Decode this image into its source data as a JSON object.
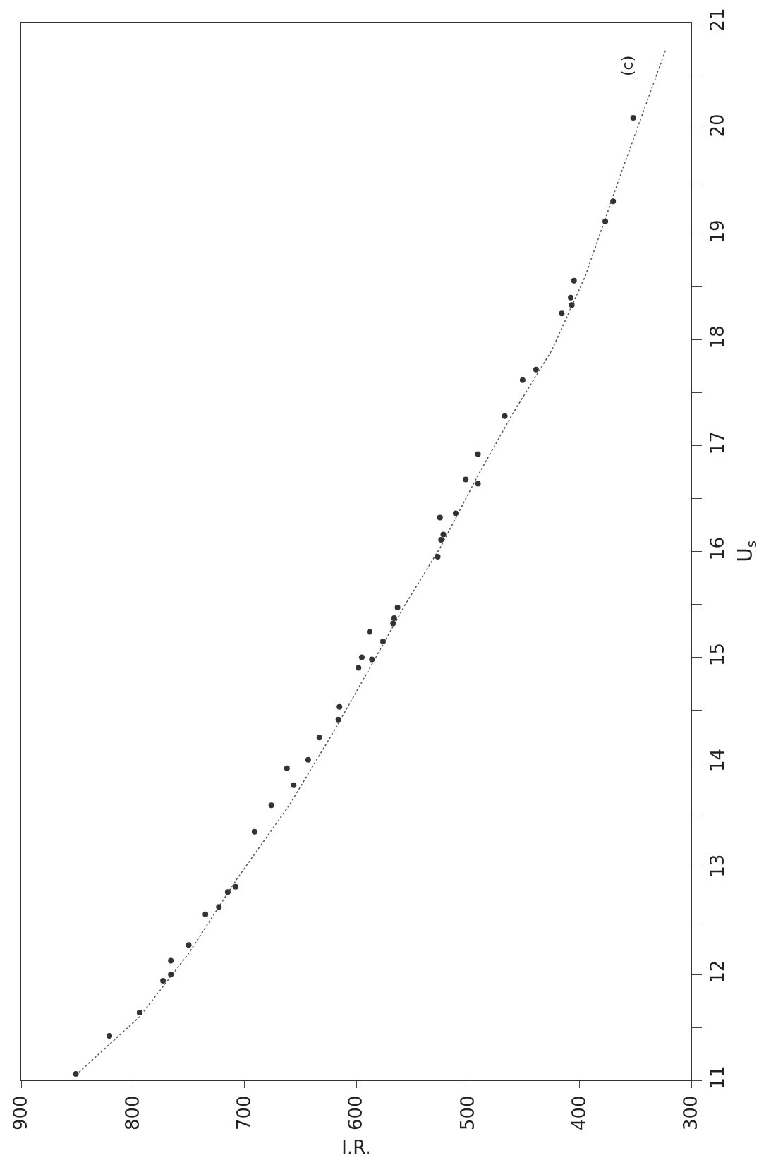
{
  "chart_data": {
    "type": "scatter",
    "xlabel": "I.R.",
    "ylabel": "U$_{s}$",
    "annotations": [
      "(c)"
    ],
    "xlim": [
      900,
      300
    ],
    "xticks": [
      900,
      800,
      700,
      600,
      500,
      400,
      300
    ],
    "ylim": [
      11,
      21
    ],
    "yticks": [
      11,
      {
        "value": 11.5,
        "label": null
      },
      12,
      {
        "value": 12.5,
        "label": null
      },
      13,
      {
        "value": 13.5,
        "label": null
      },
      14,
      {
        "value": 14.5,
        "label": null
      },
      15,
      {
        "value": 15.5,
        "label": null
      },
      16,
      {
        "value": 16.5,
        "label": null
      },
      17,
      {
        "value": 17.5,
        "label": null
      },
      18,
      {
        "value": 18.5,
        "label": null
      },
      19,
      {
        "value": 19.5,
        "label": null
      },
      20,
      {
        "value": 20.5,
        "label": null
      },
      21
    ],
    "series": [
      {
        "type": "line",
        "color": "#555555",
        "line_style": "dotted",
        "marker": "none",
        "x": [
          851,
          794,
          750,
          707,
          660,
          620,
          585,
          556,
          524,
          492,
          460,
          425,
          395,
          362,
          323
        ],
        "values": [
          11.05,
          11.6,
          12.2,
          12.9,
          13.6,
          14.3,
          14.95,
          15.5,
          16.05,
          16.7,
          17.3,
          17.9,
          18.6,
          19.6,
          20.74
        ]
      },
      {
        "color": "#333333",
        "marker": "circle",
        "x": [
          851,
          821,
          794,
          773,
          766,
          766,
          750,
          735,
          723,
          715,
          708,
          691,
          676,
          662,
          656,
          643,
          633,
          615,
          616,
          598,
          595,
          588,
          586,
          576,
          567,
          566,
          563,
          527,
          525,
          524,
          522,
          511,
          502,
          491,
          491,
          467,
          451,
          439,
          416,
          408,
          407,
          405,
          377,
          370,
          352
        ],
        "values": [
          11.06,
          11.42,
          11.64,
          11.94,
          12.0,
          12.13,
          12.28,
          12.57,
          12.64,
          12.78,
          12.83,
          13.35,
          13.6,
          13.95,
          13.79,
          14.03,
          14.24,
          14.53,
          14.41,
          14.9,
          15.0,
          15.24,
          14.98,
          15.15,
          15.32,
          15.37,
          15.47,
          15.95,
          16.32,
          16.11,
          16.16,
          16.36,
          16.68,
          16.64,
          16.92,
          17.28,
          17.62,
          17.72,
          18.25,
          18.4,
          18.33,
          18.56,
          19.12,
          19.31,
          20.1
        ]
      }
    ]
  }
}
